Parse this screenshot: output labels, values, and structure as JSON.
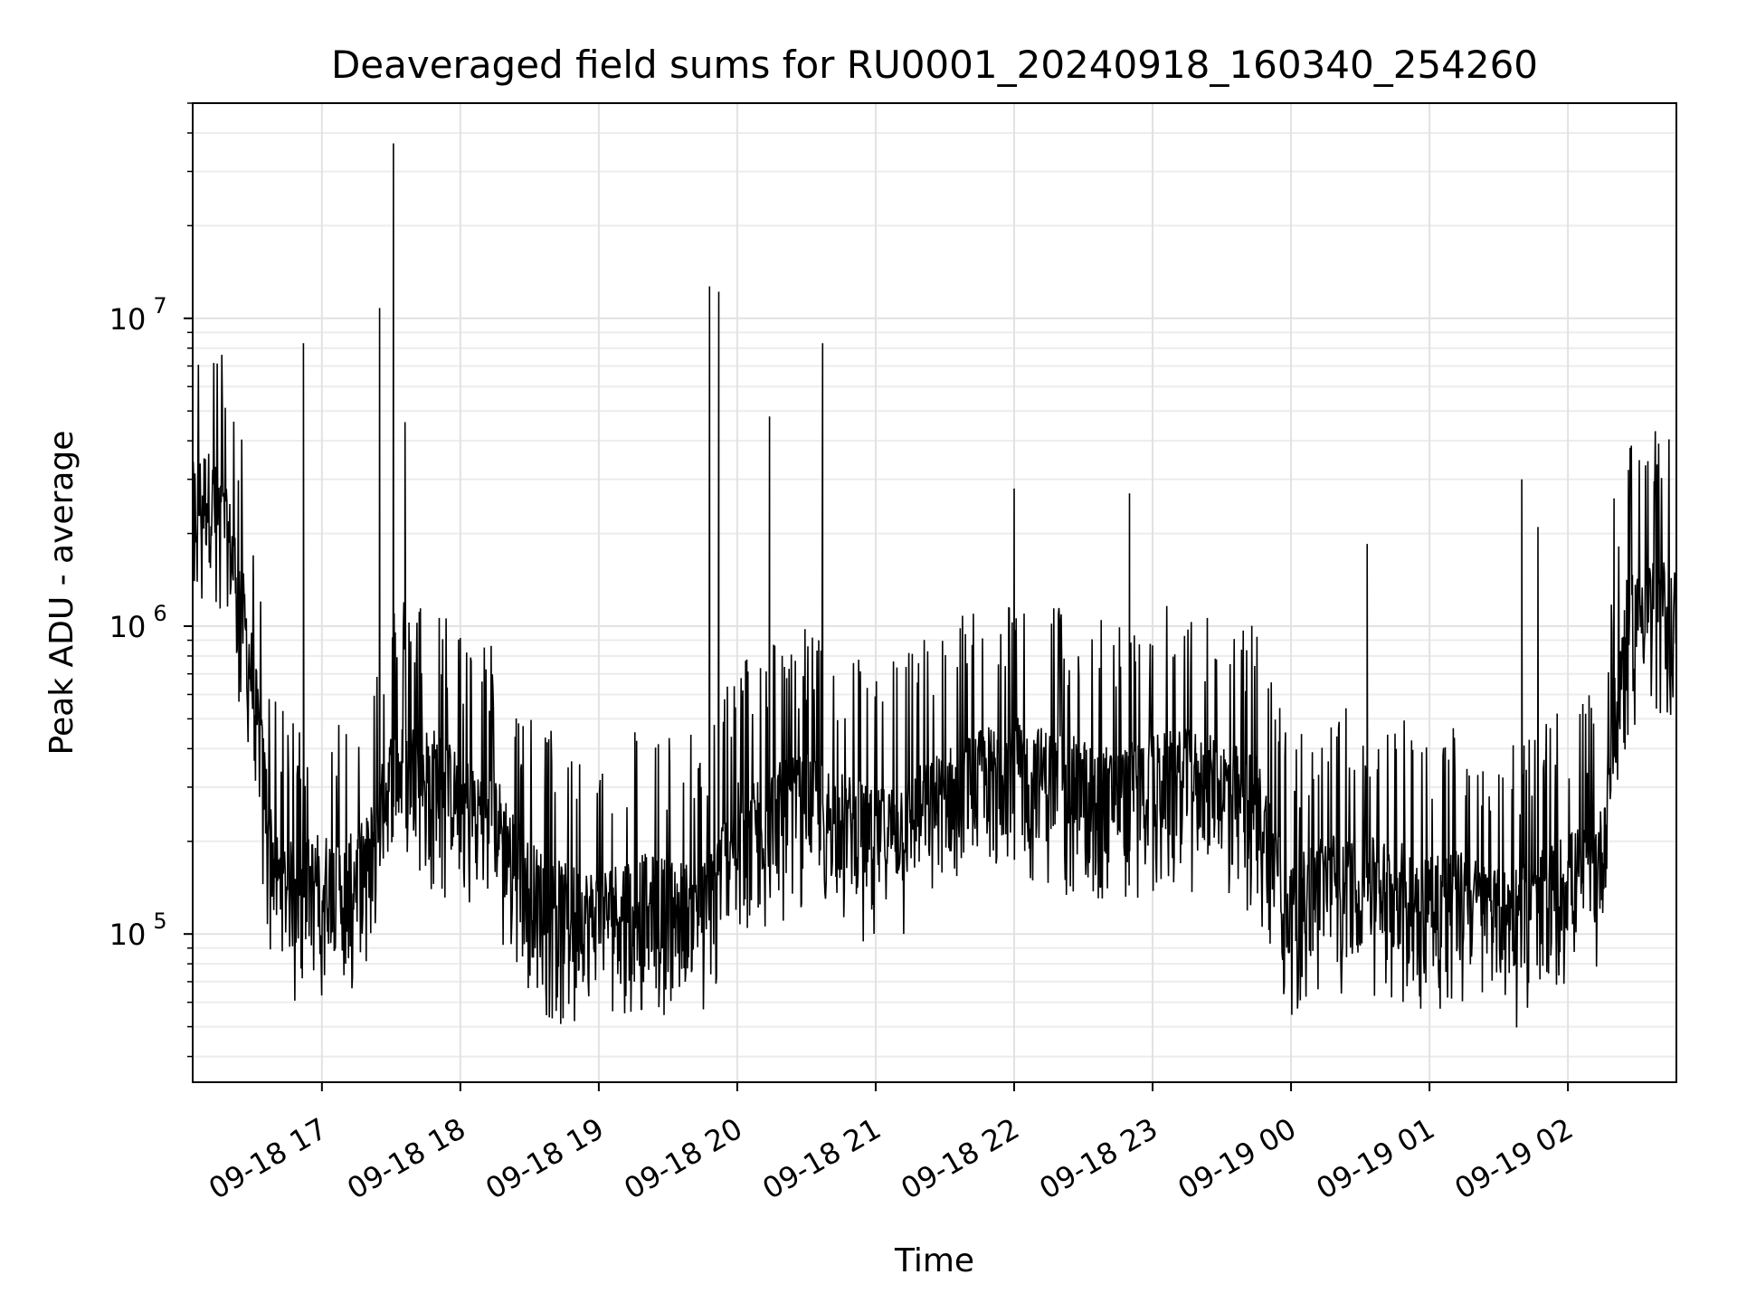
{
  "chart_data": {
    "type": "line",
    "title": "Deaveraged field sums for RU0001_20240918_160340_254260",
    "xlabel": "Time",
    "ylabel": "Peak ADU - average",
    "yscale": "log",
    "xlim": [
      "2024-09-18 16:04",
      "2024-09-19 02:47"
    ],
    "ylim": [
      33000,
      50000000
    ],
    "grid": true,
    "x_ticks": [
      "09-18 17",
      "09-18 18",
      "09-18 19",
      "09-18 20",
      "09-18 21",
      "09-18 22",
      "09-18 23",
      "09-19 00",
      "09-19 01",
      "09-19 02"
    ],
    "y_ticks": [
      {
        "value": 100000,
        "base": "10",
        "exp": "5"
      },
      {
        "value": 1000000,
        "base": "10",
        "exp": "6"
      },
      {
        "value": 10000000,
        "base": "10",
        "exp": "7"
      }
    ],
    "series": [
      {
        "color": "#000000",
        "x": [
          "2024-09-18 16:04",
          "2024-09-18 16:10",
          "2024-09-18 16:15",
          "2024-09-18 16:20",
          "2024-09-18 16:25",
          "2024-09-18 16:30",
          "2024-09-18 16:35",
          "2024-09-18 16:40",
          "2024-09-18 16:45",
          "2024-09-18 16:50",
          "2024-09-18 17:00",
          "2024-09-18 17:10",
          "2024-09-18 17:20",
          "2024-09-18 17:30",
          "2024-09-18 17:40",
          "2024-09-18 17:50",
          "2024-09-18 18:00",
          "2024-09-18 18:15",
          "2024-09-18 18:30",
          "2024-09-18 18:45",
          "2024-09-18 19:00",
          "2024-09-18 19:15",
          "2024-09-18 19:30",
          "2024-09-18 19:45",
          "2024-09-18 20:00",
          "2024-09-18 20:15",
          "2024-09-18 20:30",
          "2024-09-18 20:45",
          "2024-09-18 21:00",
          "2024-09-18 21:15",
          "2024-09-18 21:30",
          "2024-09-18 21:45",
          "2024-09-18 22:00",
          "2024-09-18 22:15",
          "2024-09-18 22:30",
          "2024-09-18 22:45",
          "2024-09-18 23:00",
          "2024-09-18 23:15",
          "2024-09-18 23:30",
          "2024-09-18 23:45",
          "2024-09-19 00:00",
          "2024-09-19 00:15",
          "2024-09-19 00:30",
          "2024-09-19 00:45",
          "2024-09-19 01:00",
          "2024-09-19 01:15",
          "2024-09-19 01:30",
          "2024-09-19 01:45",
          "2024-09-19 02:00",
          "2024-09-19 02:10",
          "2024-09-19 02:15",
          "2024-09-19 02:20",
          "2024-09-19 02:25",
          "2024-09-19 02:30",
          "2024-09-19 02:35",
          "2024-09-19 02:40",
          "2024-09-19 02:47"
        ],
        "y": [
          2200000,
          2500000,
          2100000,
          1700000,
          1100000,
          600000,
          280000,
          140000,
          130000,
          130000,
          140000,
          130000,
          160000,
          300000,
          320000,
          300000,
          250000,
          220000,
          130000,
          110000,
          105000,
          120000,
          115000,
          110000,
          200000,
          230000,
          250000,
          220000,
          190000,
          220000,
          260000,
          300000,
          330000,
          300000,
          280000,
          260000,
          290000,
          300000,
          280000,
          250000,
          110000,
          140000,
          135000,
          130000,
          125000,
          120000,
          105000,
          115000,
          140000,
          150000,
          170000,
          420000,
          900000,
          1050000,
          1100000,
          1080000,
          1000000
        ]
      }
    ],
    "spikes": [
      {
        "x": "2024-09-18 16:52",
        "y": 8300000
      },
      {
        "x": "2024-09-18 17:25",
        "y": 10800000
      },
      {
        "x": "2024-09-18 17:31",
        "y": 37000000
      },
      {
        "x": "2024-09-18 17:36",
        "y": 4600000
      },
      {
        "x": "2024-09-18 19:48",
        "y": 12700000
      },
      {
        "x": "2024-09-18 19:52",
        "y": 12200000
      },
      {
        "x": "2024-09-18 20:14",
        "y": 4800000
      },
      {
        "x": "2024-09-18 20:37",
        "y": 8300000
      },
      {
        "x": "2024-09-18 22:00",
        "y": 2800000
      },
      {
        "x": "2024-09-18 22:50",
        "y": 2700000
      },
      {
        "x": "2024-09-19 00:33",
        "y": 1850000
      },
      {
        "x": "2024-09-19 01:40",
        "y": 3000000
      },
      {
        "x": "2024-09-19 01:47",
        "y": 2100000
      },
      {
        "x": "2024-09-19 02:20",
        "y": 2600000
      },
      {
        "x": "2024-09-19 02:31",
        "y": 2500000
      }
    ]
  }
}
